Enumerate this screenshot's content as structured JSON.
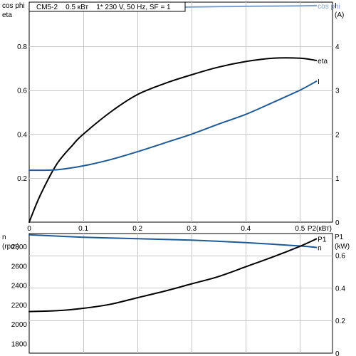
{
  "chart_data": [
    {
      "type": "line",
      "title": "CM5-2    0.5 кВт    1* 230 V, 50 Hz, SF = 1",
      "xlabel": "P2(кВт)",
      "ylabel_left_top": "cos phi",
      "ylabel_left_bottom": "eta",
      "ylabel_right_top": "I",
      "ylabel_right_bottom": "(A)",
      "xlim": [
        0,
        0.56
      ],
      "ylim_left": [
        0,
        1.0
      ],
      "ylim_right": [
        0,
        5
      ],
      "x_ticks": [
        "0",
        "0.1",
        "0.2",
        "0.3",
        "0.4",
        "0.5"
      ],
      "y_left_ticks": [
        "0.2",
        "0.4",
        "0.6",
        "0.8"
      ],
      "y_right_ticks": [
        "0",
        "1",
        "2",
        "3",
        "4"
      ],
      "grid": true,
      "series": [
        {
          "name": "cos phi",
          "axis": "left",
          "color": "#7f9fcc",
          "x": [
            0,
            0.1,
            0.2,
            0.3,
            0.4,
            0.5,
            0.53
          ],
          "y": [
            0.968,
            0.971,
            0.975,
            0.978,
            0.981,
            0.983,
            0.984
          ]
        },
        {
          "name": "eta",
          "axis": "left",
          "color": "#000000",
          "x": [
            0,
            0.02,
            0.05,
            0.08,
            0.1,
            0.15,
            0.2,
            0.25,
            0.3,
            0.35,
            0.4,
            0.45,
            0.5,
            0.53
          ],
          "y": [
            0.0,
            0.12,
            0.26,
            0.35,
            0.4,
            0.5,
            0.58,
            0.63,
            0.67,
            0.705,
            0.73,
            0.745,
            0.745,
            0.735
          ]
        },
        {
          "name": "I",
          "axis": "right",
          "color": "#1f5a96",
          "x": [
            0,
            0.05,
            0.1,
            0.15,
            0.2,
            0.25,
            0.3,
            0.35,
            0.4,
            0.45,
            0.5,
            0.53
          ],
          "y": [
            1.18,
            1.19,
            1.28,
            1.42,
            1.6,
            1.8,
            2.0,
            2.23,
            2.45,
            2.72,
            3.0,
            3.2
          ]
        }
      ]
    },
    {
      "type": "line",
      "xlabel": "",
      "ylabel_left_top": "n",
      "ylabel_left_bottom": "(rpm)",
      "ylabel_right_top": "P1",
      "ylabel_right_bottom": "(kW)",
      "xlim": [
        0,
        0.56
      ],
      "ylim_left": [
        1700,
        2933.33
      ],
      "ylim_right": [
        0,
        0.7333
      ],
      "y_left_ticks": [
        "1800",
        "2000",
        "2200",
        "2400",
        "2600",
        "2800"
      ],
      "y_right_ticks": [
        "0",
        "0.2",
        "0.4",
        "0.6"
      ],
      "grid": true,
      "series": [
        {
          "name": "n",
          "axis": "left",
          "color": "#1f5a96",
          "x": [
            0,
            0.1,
            0.2,
            0.3,
            0.4,
            0.5,
            0.53
          ],
          "y": [
            2920,
            2895,
            2880,
            2865,
            2840,
            2805,
            2790
          ]
        },
        {
          "name": "P1",
          "axis": "right",
          "color": "#000000",
          "x": [
            0,
            0.05,
            0.1,
            0.15,
            0.2,
            0.25,
            0.3,
            0.35,
            0.4,
            0.45,
            0.5,
            0.53
          ],
          "y": [
            0.255,
            0.26,
            0.275,
            0.3,
            0.34,
            0.38,
            0.425,
            0.47,
            0.53,
            0.59,
            0.655,
            0.7
          ]
        }
      ]
    }
  ]
}
